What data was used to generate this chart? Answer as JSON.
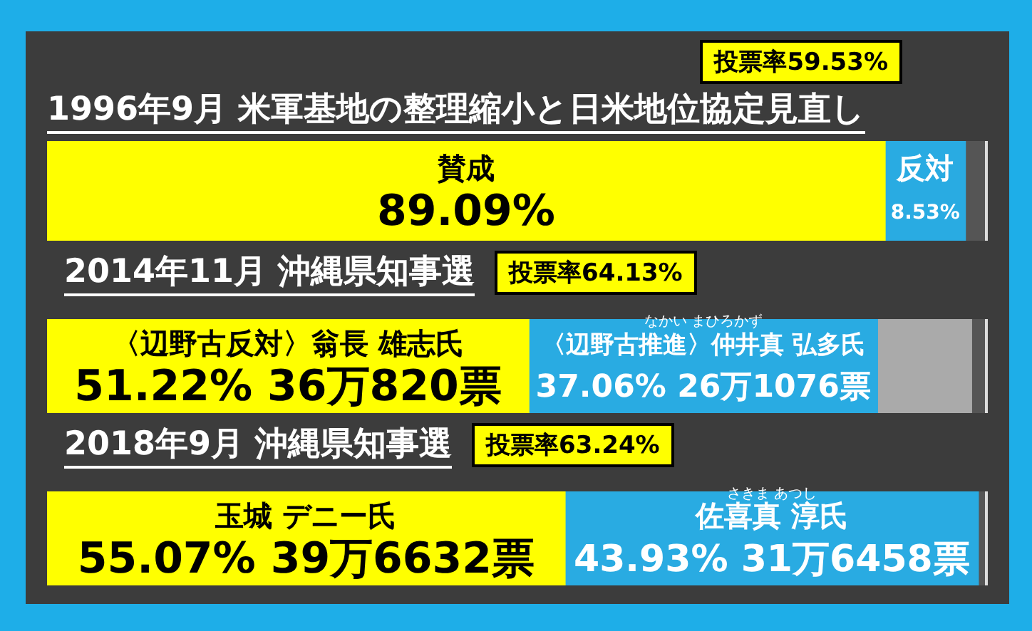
{
  "chart_data": [
    {
      "type": "bar",
      "orientation": "horizontal",
      "stacked": true,
      "tick_labels": false,
      "legend": false,
      "xlim": [
        0,
        100
      ],
      "title": "1996年9月 米軍基地の整理縮小と日米地位協定見直し",
      "annotations": [
        "投票率59.53%"
      ],
      "categories": [
        null
      ],
      "series": [
        {
          "name": "賛成",
          "color": "#ffff00",
          "values": [
            89.09
          ],
          "value_labels": [
            "89.09%"
          ]
        },
        {
          "name": "反対",
          "color": "#29abe2",
          "values": [
            8.53
          ],
          "value_labels": [
            "8.53%"
          ]
        }
      ]
    },
    {
      "type": "bar",
      "orientation": "horizontal",
      "stacked": true,
      "tick_labels": false,
      "legend": false,
      "xlim": [
        0,
        100
      ],
      "title": "2014年11月 沖縄県知事選",
      "annotations": [
        "投票率64.13%",
        "なかい まひろかず"
      ],
      "categories": [
        null
      ],
      "series": [
        {
          "name": "〈辺野古反対〉翁長 雄志氏",
          "color": "#ffff00",
          "values": [
            51.22
          ],
          "value_labels": [
            "51.22% 36万820票"
          ]
        },
        {
          "name": "〈辺野古推進〉仲井真 弘多氏",
          "color": "#29abe2",
          "values": [
            37.06
          ],
          "value_labels": [
            "37.06% 26万1076票"
          ]
        },
        {
          "color": "#aaaaaa",
          "values": [
            10
          ]
        }
      ]
    },
    {
      "type": "bar",
      "orientation": "horizontal",
      "stacked": true,
      "tick_labels": false,
      "legend": false,
      "xlim": [
        0,
        100
      ],
      "title": "2018年9月 沖縄県知事選",
      "annotations": [
        "投票率63.24%",
        "さきま あつし"
      ],
      "categories": [
        null
      ],
      "series": [
        {
          "name": "玉城 デニー氏",
          "color": "#ffff00",
          "values": [
            55.07
          ],
          "value_labels": [
            "55.07% 39万6632票"
          ]
        },
        {
          "name": "佐喜真 淳氏",
          "color": "#29abe2",
          "values": [
            43.93
          ],
          "value_labels": [
            "43.93% 31万6458票"
          ]
        }
      ]
    }
  ]
}
